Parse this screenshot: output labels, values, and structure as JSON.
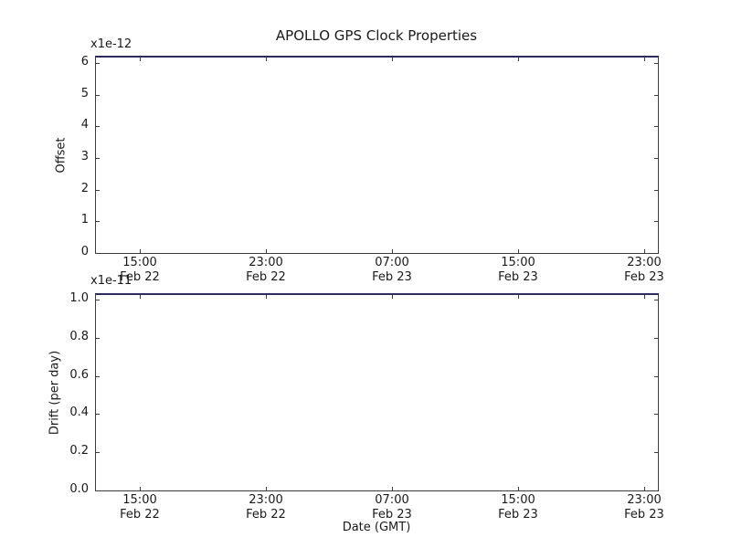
{
  "figure": {
    "title": "APOLLO GPS Clock Properties",
    "background_color": "#ffffff",
    "frame_color": "#3c3c3c",
    "top_spine_color": "#2e2e5e",
    "text_color": "#1a1a1a"
  },
  "chart_data": [
    {
      "type": "line",
      "subplot": "top",
      "title": "APOLLO GPS Clock Properties",
      "ylabel": "Offset",
      "y_offset_text": "x1e-12",
      "y_scale": "1e-12",
      "ylim": [
        0,
        6.2
      ],
      "yticks": [
        "6",
        "5",
        "4",
        "3",
        "2",
        "1",
        "0"
      ],
      "xticks": [
        {
          "time": "15:00",
          "date": "Feb 22"
        },
        {
          "time": "23:00",
          "date": "Feb 22"
        },
        {
          "time": "07:00",
          "date": "Feb 23"
        },
        {
          "time": "15:00",
          "date": "Feb 23"
        },
        {
          "time": "23:00",
          "date": "Feb 23"
        }
      ],
      "series": [],
      "grid": false,
      "legend": null
    },
    {
      "type": "line",
      "subplot": "bottom",
      "ylabel": "Drift (per day)",
      "xlabel": "Date (GMT)",
      "y_offset_text": "x1e-11",
      "y_scale": "1e-11",
      "ylim": [
        0,
        1.02
      ],
      "yticks": [
        "1.0",
        "0.8",
        "0.6",
        "0.4",
        "0.2",
        "0.0"
      ],
      "xticks": [
        {
          "time": "15:00",
          "date": "Feb 22"
        },
        {
          "time": "23:00",
          "date": "Feb 22"
        },
        {
          "time": "07:00",
          "date": "Feb 23"
        },
        {
          "time": "15:00",
          "date": "Feb 23"
        },
        {
          "time": "23:00",
          "date": "Feb 23"
        }
      ],
      "series": [],
      "grid": false,
      "legend": null
    }
  ]
}
